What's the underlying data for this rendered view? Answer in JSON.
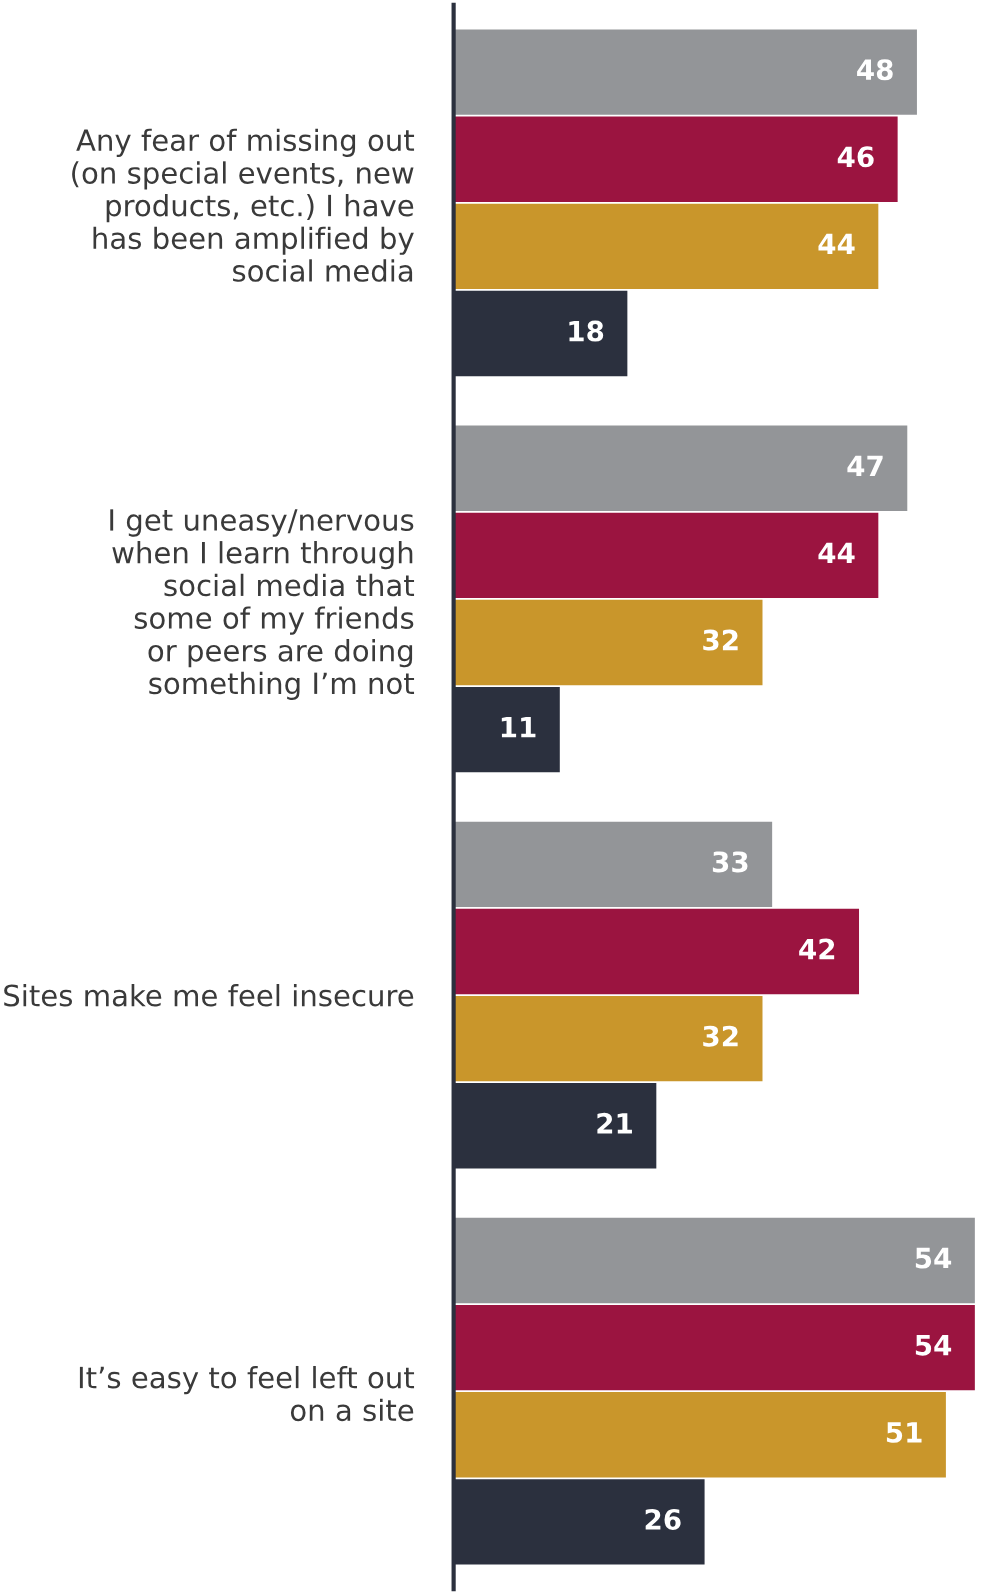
{
  "chart_data": {
    "type": "bar",
    "orientation": "horizontal",
    "data_labels": true,
    "grid": false,
    "legend": false,
    "categories": [
      "Any fear of missing out\n(on special events, new\nproducts, etc.) I have\nhas been amplified by\nsocial media",
      "I get uneasy/nervous\nwhen I learn through\nsocial media that\nsome of my friends\nor peers are doing\nsomething I’m not",
      "Sites make me feel insecure",
      "It’s easy to feel left out\non a site"
    ],
    "series": [
      {
        "color": "#939598",
        "values": [
          48,
          47,
          33,
          54
        ]
      },
      {
        "color": "#9b1440",
        "values": [
          46,
          44,
          42,
          54
        ]
      },
      {
        "color": "#c9962b",
        "values": [
          44,
          32,
          32,
          51
        ]
      },
      {
        "color": "#2b303e",
        "values": [
          18,
          11,
          21,
          26
        ]
      }
    ]
  }
}
